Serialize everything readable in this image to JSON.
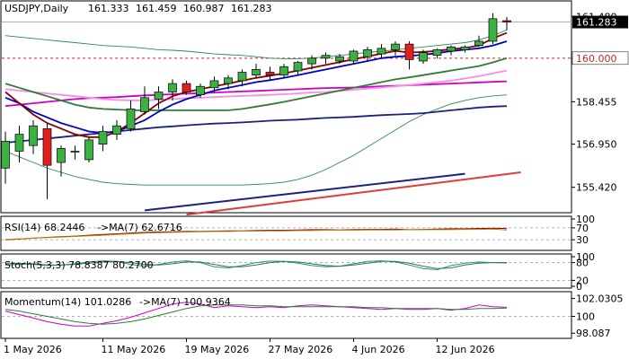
{
  "chart_data": [
    {
      "type": "candlestick",
      "title": "USDJPY,Daily",
      "ohlc_readout": [
        "161.333",
        "161.459",
        "160.987",
        "161.283"
      ],
      "last_price": "161.283",
      "reference_level": {
        "value": 160.0,
        "label": "160.000"
      },
      "y_ticks": [
        "161.480",
        "160.000",
        "158.455",
        "156.950",
        "155.420"
      ],
      "y_tick_values": [
        161.48,
        160.0,
        158.455,
        156.95,
        155.42
      ],
      "ylim": [
        154.55,
        162.0
      ],
      "x_tick_labels": [
        "1 May 2026",
        "11 May 2026",
        "19 May 2026",
        "27 May 2026",
        "4 Jun 2026",
        "12 Jun 2026"
      ],
      "x_tick_index": [
        0,
        7,
        13,
        19,
        25,
        31
      ],
      "candles": [
        {
          "o": 156.1,
          "h": 157.4,
          "l": 155.55,
          "c": 157.05
        },
        {
          "o": 156.7,
          "h": 157.6,
          "l": 156.3,
          "c": 157.3
        },
        {
          "o": 156.9,
          "h": 157.8,
          "l": 156.6,
          "c": 157.6
        },
        {
          "o": 157.5,
          "h": 157.7,
          "l": 155.0,
          "c": 156.2
        },
        {
          "o": 156.3,
          "h": 156.9,
          "l": 155.8,
          "c": 156.8
        },
        {
          "o": 156.7,
          "h": 156.9,
          "l": 156.4,
          "c": 156.7
        },
        {
          "o": 156.4,
          "h": 157.2,
          "l": 156.3,
          "c": 157.1
        },
        {
          "o": 156.95,
          "h": 157.6,
          "l": 156.7,
          "c": 157.4
        },
        {
          "o": 157.3,
          "h": 157.8,
          "l": 157.1,
          "c": 157.6
        },
        {
          "o": 157.5,
          "h": 158.5,
          "l": 157.4,
          "c": 158.2
        },
        {
          "o": 158.1,
          "h": 159.0,
          "l": 158.0,
          "c": 158.6
        },
        {
          "o": 158.55,
          "h": 159.0,
          "l": 158.2,
          "c": 158.8
        },
        {
          "o": 158.8,
          "h": 159.25,
          "l": 158.5,
          "c": 159.1
        },
        {
          "o": 159.1,
          "h": 159.2,
          "l": 158.7,
          "c": 158.8
        },
        {
          "o": 158.7,
          "h": 159.1,
          "l": 158.6,
          "c": 159.0
        },
        {
          "o": 158.95,
          "h": 159.35,
          "l": 158.8,
          "c": 159.2
        },
        {
          "o": 159.1,
          "h": 159.4,
          "l": 158.9,
          "c": 159.3
        },
        {
          "o": 159.2,
          "h": 159.6,
          "l": 159.0,
          "c": 159.5
        },
        {
          "o": 159.4,
          "h": 159.8,
          "l": 159.3,
          "c": 159.6
        },
        {
          "o": 159.5,
          "h": 159.7,
          "l": 159.2,
          "c": 159.4
        },
        {
          "o": 159.4,
          "h": 159.8,
          "l": 159.3,
          "c": 159.7
        },
        {
          "o": 159.55,
          "h": 159.9,
          "l": 159.4,
          "c": 159.85
        },
        {
          "o": 159.8,
          "h": 160.1,
          "l": 159.6,
          "c": 160.0
        },
        {
          "o": 160.0,
          "h": 160.2,
          "l": 159.8,
          "c": 160.1
        },
        {
          "o": 159.9,
          "h": 160.15,
          "l": 159.8,
          "c": 160.05
        },
        {
          "o": 159.9,
          "h": 160.3,
          "l": 159.8,
          "c": 160.25
        },
        {
          "o": 160.05,
          "h": 160.4,
          "l": 159.9,
          "c": 160.3
        },
        {
          "o": 160.15,
          "h": 160.5,
          "l": 160.0,
          "c": 160.35
        },
        {
          "o": 160.3,
          "h": 160.6,
          "l": 160.1,
          "c": 160.5
        },
        {
          "o": 160.5,
          "h": 160.6,
          "l": 159.6,
          "c": 159.95
        },
        {
          "o": 159.9,
          "h": 160.3,
          "l": 159.8,
          "c": 160.2
        },
        {
          "o": 160.1,
          "h": 160.35,
          "l": 160.0,
          "c": 160.3
        },
        {
          "o": 160.25,
          "h": 160.45,
          "l": 160.1,
          "c": 160.4
        },
        {
          "o": 160.3,
          "h": 160.45,
          "l": 160.2,
          "c": 160.4
        },
        {
          "o": 160.45,
          "h": 160.8,
          "l": 160.4,
          "c": 160.6
        },
        {
          "o": 160.6,
          "h": 161.6,
          "l": 160.5,
          "c": 161.4
        },
        {
          "o": 161.33,
          "h": 161.46,
          "l": 160.99,
          "c": 161.28
        }
      ],
      "overlay_series": [
        {
          "color": "#1a237e",
          "values": [
            157.0,
            157.05,
            157.1,
            157.15,
            157.2,
            157.25,
            157.3,
            157.35,
            157.4,
            157.45,
            157.5,
            157.55,
            157.58,
            157.62,
            157.65,
            157.68,
            157.7,
            157.72,
            157.75,
            157.78,
            157.8,
            157.82,
            157.85,
            157.88,
            157.9,
            157.92,
            157.95,
            157.98,
            158.0,
            158.02,
            158.05,
            158.1,
            158.15,
            158.2,
            158.25,
            158.28,
            158.3
          ]
        },
        {
          "color": "#cc00cc",
          "values": [
            158.3,
            158.35,
            158.4,
            158.45,
            158.5,
            158.55,
            158.58,
            158.6,
            158.62,
            158.65,
            158.68,
            158.7,
            158.72,
            158.74,
            158.76,
            158.78,
            158.8,
            158.82,
            158.84,
            158.86,
            158.88,
            158.9,
            158.92,
            158.94,
            158.95,
            158.96,
            158.98,
            159.0,
            159.02,
            159.04,
            159.06,
            159.08,
            159.1,
            159.12,
            159.14,
            159.16,
            159.18
          ]
        },
        {
          "color": "#f48fe0",
          "values": [
            158.9,
            158.85,
            158.8,
            158.75,
            158.7,
            158.65,
            158.6,
            158.55,
            158.52,
            158.5,
            158.5,
            158.52,
            158.55,
            158.58,
            158.6,
            158.62,
            158.64,
            158.66,
            158.68,
            158.7,
            158.72,
            158.75,
            158.78,
            158.8,
            158.84,
            158.88,
            158.92,
            158.96,
            159.0,
            159.05,
            159.1,
            159.15,
            159.2,
            159.28,
            159.36,
            159.46,
            159.56
          ]
        },
        {
          "color": "#2e7d32",
          "values": [
            159.1,
            158.95,
            158.8,
            158.65,
            158.5,
            158.35,
            158.25,
            158.2,
            158.18,
            158.15,
            158.15,
            158.15,
            158.15,
            158.15,
            158.15,
            158.15,
            158.15,
            158.2,
            158.28,
            158.36,
            158.45,
            158.55,
            158.65,
            158.75,
            158.85,
            158.95,
            159.05,
            159.15,
            159.25,
            159.32,
            159.4,
            159.48,
            159.56,
            159.64,
            159.72,
            159.85,
            160.0
          ]
        },
        {
          "color": "#0000cc",
          "values": [
            158.6,
            158.4,
            158.1,
            157.9,
            157.7,
            157.55,
            157.4,
            157.35,
            157.4,
            157.6,
            157.8,
            158.1,
            158.35,
            158.55,
            158.7,
            158.85,
            158.95,
            159.05,
            159.15,
            159.22,
            159.3,
            159.4,
            159.5,
            159.6,
            159.7,
            159.8,
            159.9,
            160.0,
            160.05,
            160.08,
            160.12,
            160.18,
            160.25,
            160.3,
            160.35,
            160.45,
            160.6
          ]
        },
        {
          "color": "#8b0000",
          "values": [
            158.8,
            158.4,
            158.0,
            157.7,
            157.5,
            157.3,
            157.2,
            157.2,
            157.4,
            157.7,
            158.05,
            158.4,
            158.65,
            158.8,
            158.9,
            159.0,
            159.1,
            159.2,
            159.3,
            159.38,
            159.46,
            159.56,
            159.66,
            159.76,
            159.86,
            159.96,
            160.06,
            160.16,
            160.26,
            160.2,
            160.22,
            160.26,
            160.32,
            160.36,
            160.45,
            160.7,
            160.9
          ]
        }
      ],
      "bands": {
        "color": "#2e8b57",
        "upper": [
          160.8,
          160.75,
          160.7,
          160.65,
          160.6,
          160.55,
          160.5,
          160.45,
          160.42,
          160.4,
          160.35,
          160.3,
          160.28,
          160.25,
          160.2,
          160.15,
          160.12,
          160.1,
          160.05,
          160.0,
          159.98,
          159.98,
          160.0,
          160.05,
          160.1,
          160.15,
          160.2,
          160.25,
          160.3,
          160.35,
          160.4,
          160.45,
          160.5,
          160.55,
          160.65,
          160.8,
          161.0
        ],
        "lower": [
          156.7,
          156.5,
          156.3,
          156.1,
          155.95,
          155.8,
          155.7,
          155.6,
          155.55,
          155.52,
          155.5,
          155.5,
          155.5,
          155.5,
          155.5,
          155.5,
          155.5,
          155.5,
          155.52,
          155.55,
          155.6,
          155.7,
          155.85,
          156.05,
          156.3,
          156.55,
          156.85,
          157.15,
          157.45,
          157.75,
          158.0,
          158.2,
          158.38,
          158.5,
          158.6,
          158.66,
          158.7
        ]
      },
      "long_trend_lines": [
        {
          "color": "#1a237e",
          "start_index": 10,
          "end_index": 33,
          "start_value": 154.6,
          "end_value": 155.9
        },
        {
          "color": "#e53935",
          "start_index": 13,
          "end_index": 37,
          "start_value": 154.45,
          "end_value": 155.95
        }
      ]
    },
    {
      "type": "line",
      "panel_label": "RSI(14) 68.2446",
      "ma_label": "->MA(7) 62.6716",
      "y_ticks": [
        "100",
        "70",
        "30"
      ],
      "y_tick_values": [
        100,
        70,
        30
      ],
      "ylim": [
        0,
        100
      ],
      "series": [
        {
          "color": "#8b0000",
          "values": [
            30,
            32,
            35,
            38,
            40,
            42,
            45,
            48,
            50,
            52,
            55,
            56,
            57,
            58,
            58,
            59,
            60,
            60,
            61,
            62,
            62,
            63,
            64,
            64,
            63,
            64,
            65,
            65,
            66,
            64,
            65,
            66,
            67,
            67,
            68,
            69,
            68
          ]
        },
        {
          "color": "#b8860b",
          "values": [
            31,
            33,
            35,
            37,
            39,
            41,
            43,
            45,
            48,
            50,
            52,
            54,
            55,
            56,
            57,
            58,
            58,
            59,
            59,
            60,
            60,
            61,
            61,
            62,
            62,
            62,
            63,
            63,
            63,
            64,
            64,
            64,
            64,
            65,
            65,
            66,
            62.67
          ]
        }
      ]
    },
    {
      "type": "line",
      "panel_label": "Stoch(5,3,3) 78.8387 80.2700",
      "y_ticks": [
        "100",
        "80",
        "20",
        "0"
      ],
      "y_tick_values": [
        100,
        80,
        20,
        0
      ],
      "ylim": [
        0,
        100
      ],
      "series": [
        {
          "color": "#1f8fa5",
          "values": [
            76,
            78,
            74,
            70,
            72,
            76,
            82,
            86,
            84,
            74,
            68,
            74,
            82,
            86,
            80,
            66,
            62,
            70,
            80,
            85,
            84,
            78,
            70,
            66,
            68,
            76,
            84,
            86,
            82,
            72,
            60,
            56,
            70,
            78,
            82,
            80,
            78.84
          ]
        },
        {
          "color": "#2e7d32",
          "values": [
            72,
            74,
            76,
            72,
            72,
            74,
            78,
            82,
            84,
            80,
            74,
            72,
            76,
            82,
            82,
            74,
            66,
            66,
            72,
            80,
            84,
            82,
            76,
            70,
            68,
            72,
            78,
            84,
            84,
            78,
            68,
            60,
            62,
            72,
            78,
            80,
            80.27
          ]
        }
      ]
    },
    {
      "type": "line",
      "panel_label": "Momentum(14) 101.0286",
      "ma_label": "->MA(7) 100.9364",
      "y_ticks": [
        "102.0305",
        "100",
        "98.087"
      ],
      "y_tick_values": [
        102.0305,
        100,
        98.087
      ],
      "ylim": [
        97.6,
        102.5
      ],
      "series": [
        {
          "color": "#cc00cc",
          "values": [
            100.6,
            100.2,
            99.8,
            99.4,
            99.1,
            98.9,
            98.9,
            99.2,
            99.5,
            99.9,
            100.4,
            100.9,
            101.4,
            101.6,
            101.4,
            101.0,
            101.2,
            101.1,
            101.0,
            101.1,
            101.0,
            101.2,
            101.3,
            101.2,
            101.1,
            101.0,
            100.9,
            100.8,
            100.9,
            100.8,
            100.8,
            100.9,
            100.7,
            100.9,
            101.3,
            101.1,
            101.03
          ]
        },
        {
          "color": "#2e7d32",
          "values": [
            100.8,
            100.6,
            100.3,
            100.0,
            99.7,
            99.4,
            99.2,
            99.1,
            99.2,
            99.4,
            99.7,
            100.1,
            100.5,
            100.9,
            101.2,
            101.3,
            101.3,
            101.3,
            101.2,
            101.2,
            101.1,
            101.1,
            101.1,
            101.1,
            101.1,
            101.1,
            101.0,
            101.0,
            100.9,
            100.9,
            100.9,
            100.9,
            100.8,
            100.8,
            100.9,
            100.9,
            100.94
          ]
        }
      ],
      "x_tick_labels": [
        "1 May 2026",
        "11 May 2026",
        "19 May 2026",
        "27 May 2026",
        "4 Jun 2026",
        "12 Jun 2026"
      ]
    }
  ]
}
